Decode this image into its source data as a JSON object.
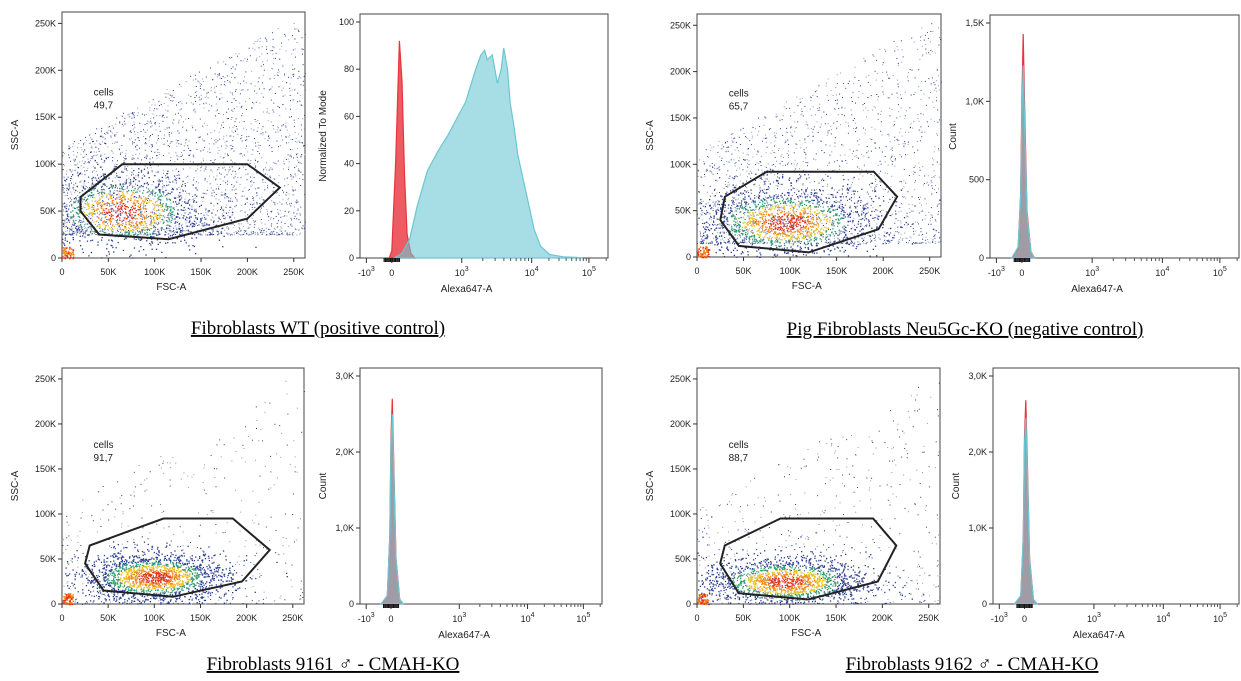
{
  "colors": {
    "control_histogram": "#e8323c",
    "stained_histogram": "#6cc6d2",
    "dot_low": "#2a3d8f",
    "dot_mid": "#2f9b6e",
    "dot_high": "#f0c020",
    "dot_peak": "#e03418",
    "gate": "#222222"
  },
  "chart_data": [
    {
      "id": "p1",
      "type": "scatter",
      "title": "",
      "caption": "Fibroblasts WT (positive control)",
      "xlabel": "FSC-A",
      "ylabel": "SSC-A",
      "xlim": [
        0,
        262144
      ],
      "ylim": [
        0,
        262144
      ],
      "x_ticks": [
        0,
        50000,
        100000,
        150000,
        200000,
        250000
      ],
      "x_tick_labels": [
        "0",
        "50K",
        "100K",
        "150K",
        "200K",
        "250K"
      ],
      "y_ticks": [
        0,
        50000,
        100000,
        150000,
        200000,
        250000
      ],
      "y_tick_labels": [
        "0",
        "50K",
        "100K",
        "150K",
        "200K",
        "250K"
      ],
      "gate": {
        "name": "cells",
        "value": "49,7",
        "vertices": [
          [
            20000,
            50000
          ],
          [
            40000,
            25000
          ],
          [
            115000,
            20000
          ],
          [
            200000,
            42000
          ],
          [
            235000,
            75000
          ],
          [
            200000,
            100000
          ],
          [
            65000,
            100000
          ],
          [
            20000,
            65000
          ]
        ]
      },
      "population": {
        "center": [
          65000,
          50000
        ],
        "spread": [
          45000,
          22000
        ],
        "n_core": 1100,
        "n_background": 2600,
        "bg_ymin": 25000,
        "bg_ymax": 262144,
        "bg_xmin": 0,
        "bg_xmax": 262144
      }
    },
    {
      "id": "h1",
      "type": "area",
      "title": "",
      "xlabel": "Alexa647-A",
      "ylabel": "Normalized To Mode",
      "ylim": [
        0,
        100
      ],
      "y_ticks": [
        0,
        20,
        40,
        60,
        80,
        100
      ],
      "y_tick_labels": [
        "0",
        "20",
        "40",
        "60",
        "80",
        "100"
      ],
      "x_tick_labels": [
        "-10",
        "0",
        "10",
        "10",
        "10"
      ],
      "x_tick_exponents": [
        "3",
        "",
        "3",
        "4",
        "5"
      ],
      "series": [
        {
          "color_key": "control_histogram",
          "points": [
            [
              -0.05,
              0
            ],
            [
              -0.02,
              0
            ],
            [
              0.0,
              3
            ],
            [
              0.03,
              40
            ],
            [
              0.06,
              92
            ],
            [
              0.08,
              75
            ],
            [
              0.1,
              35
            ],
            [
              0.12,
              10
            ],
            [
              0.15,
              2
            ],
            [
              0.18,
              0
            ]
          ]
        },
        {
          "color_key": "stained_histogram",
          "points": [
            [
              0.02,
              0
            ],
            [
              0.08,
              2
            ],
            [
              0.14,
              8
            ],
            [
              0.2,
              22
            ],
            [
              0.28,
              37
            ],
            [
              0.36,
              45
            ],
            [
              0.44,
              52
            ],
            [
              0.52,
              60
            ],
            [
              0.58,
              66
            ],
            [
              0.62,
              73
            ],
            [
              0.66,
              80
            ],
            [
              0.7,
              86
            ],
            [
              0.73,
              88
            ],
            [
              0.75,
              84
            ],
            [
              0.79,
              86
            ],
            [
              0.83,
              74
            ],
            [
              0.86,
              80
            ],
            [
              0.88,
              89
            ],
            [
              0.91,
              80
            ],
            [
              0.93,
              66
            ],
            [
              0.96,
              56
            ],
            [
              0.99,
              44
            ],
            [
              1.03,
              34
            ],
            [
              1.08,
              22
            ],
            [
              1.12,
              12
            ],
            [
              1.17,
              5
            ],
            [
              1.24,
              1.5
            ],
            [
              1.35,
              0.5
            ],
            [
              1.45,
              0.3
            ],
            [
              1.5,
              0
            ]
          ]
        }
      ]
    },
    {
      "id": "p2",
      "type": "scatter",
      "title": "",
      "caption": "Pig Fibroblasts Neu5Gc-KO (negative control)",
      "xlabel": "FSC-A",
      "ylabel": "SSC-A",
      "xlim": [
        0,
        262144
      ],
      "ylim": [
        0,
        262144
      ],
      "x_ticks": [
        0,
        50000,
        100000,
        150000,
        200000,
        250000
      ],
      "x_tick_labels": [
        "0",
        "50K",
        "100K",
        "150K",
        "200K",
        "250K"
      ],
      "y_ticks": [
        0,
        50000,
        100000,
        150000,
        200000,
        250000
      ],
      "y_tick_labels": [
        "0",
        "50K",
        "100K",
        "150K",
        "200K",
        "250K"
      ],
      "gate": {
        "name": "cells",
        "value": "65,7",
        "vertices": [
          [
            25000,
            40000
          ],
          [
            45000,
            12000
          ],
          [
            120000,
            5000
          ],
          [
            195000,
            30000
          ],
          [
            215000,
            65000
          ],
          [
            190000,
            92000
          ],
          [
            75000,
            92000
          ],
          [
            30000,
            65000
          ]
        ]
      },
      "population": {
        "center": [
          95000,
          38000
        ],
        "spread": [
          50000,
          20000
        ],
        "n_core": 1500,
        "n_background": 1800,
        "bg_ymin": 15000,
        "bg_ymax": 262144,
        "bg_xmin": 0,
        "bg_xmax": 262144
      }
    },
    {
      "id": "h2",
      "type": "area",
      "title": "",
      "xlabel": "Alexa647-A",
      "ylabel": "Count",
      "ylim": [
        0,
        1500
      ],
      "y_ticks": [
        0,
        500,
        1000,
        1500
      ],
      "y_tick_labels": [
        "0",
        "500",
        "1,0K",
        "1,5K"
      ],
      "x_tick_labels": [
        "-10",
        "0",
        "10",
        "10",
        "10"
      ],
      "x_tick_exponents": [
        "3",
        "",
        "3",
        "4",
        "5"
      ],
      "series": [
        {
          "color_key": "control_histogram",
          "points": [
            [
              -0.08,
              0
            ],
            [
              -0.03,
              60
            ],
            [
              -0.01,
              400
            ],
            [
              0.0,
              1000
            ],
            [
              0.01,
              1430
            ],
            [
              0.02,
              1000
            ],
            [
              0.04,
              300
            ],
            [
              0.07,
              40
            ],
            [
              0.1,
              0
            ]
          ]
        },
        {
          "color_key": "stained_histogram",
          "points": [
            [
              -0.08,
              0
            ],
            [
              -0.03,
              70
            ],
            [
              -0.01,
              380
            ],
            [
              0.0,
              900
            ],
            [
              0.01,
              1230
            ],
            [
              0.02,
              900
            ],
            [
              0.04,
              280
            ],
            [
              0.07,
              40
            ],
            [
              0.1,
              0
            ]
          ]
        }
      ]
    },
    {
      "id": "p3",
      "type": "scatter",
      "title": "",
      "caption": "Fibroblasts 9161 ♂ - CMAH-KO",
      "xlabel": "FSC-A",
      "ylabel": "SSC-A",
      "xlim": [
        0,
        262144
      ],
      "ylim": [
        0,
        262144
      ],
      "x_ticks": [
        0,
        50000,
        100000,
        150000,
        200000,
        250000
      ],
      "x_tick_labels": [
        "0",
        "50K",
        "100K",
        "150K",
        "200K",
        "250K"
      ],
      "y_ticks": [
        0,
        50000,
        100000,
        150000,
        200000,
        250000
      ],
      "y_tick_labels": [
        "0",
        "50K",
        "100K",
        "150K",
        "200K",
        "250K"
      ],
      "gate": {
        "name": "cells",
        "value": "91,7",
        "vertices": [
          [
            25000,
            45000
          ],
          [
            45000,
            15000
          ],
          [
            120000,
            8000
          ],
          [
            195000,
            25000
          ],
          [
            225000,
            60000
          ],
          [
            185000,
            95000
          ],
          [
            110000,
            95000
          ],
          [
            30000,
            65000
          ]
        ]
      },
      "population": {
        "center": [
          100000,
          30000
        ],
        "spread": [
          40000,
          14000
        ],
        "n_core": 1800,
        "n_background": 450,
        "bg_ymin": 0,
        "bg_ymax": 262144,
        "bg_xmin": 0,
        "bg_xmax": 262144
      }
    },
    {
      "id": "h3",
      "type": "area",
      "title": "",
      "xlabel": "Alexa647-A",
      "ylabel": "Count",
      "ylim": [
        0,
        3000
      ],
      "y_ticks": [
        0,
        1000,
        2000,
        3000
      ],
      "y_tick_labels": [
        "0",
        "1,0K",
        "2,0K",
        "3,0K"
      ],
      "x_tick_labels": [
        "-10",
        "0",
        "10",
        "10",
        "10"
      ],
      "x_tick_exponents": [
        "3",
        "",
        "3",
        "4",
        "5"
      ],
      "series": [
        {
          "color_key": "control_histogram",
          "points": [
            [
              -0.08,
              0
            ],
            [
              -0.03,
              100
            ],
            [
              -0.01,
              900
            ],
            [
              0.0,
              2200
            ],
            [
              0.01,
              2700
            ],
            [
              0.02,
              2000
            ],
            [
              0.04,
              600
            ],
            [
              0.07,
              60
            ],
            [
              0.1,
              0
            ]
          ]
        },
        {
          "color_key": "stained_histogram",
          "points": [
            [
              -0.08,
              0
            ],
            [
              -0.03,
              110
            ],
            [
              -0.01,
              880
            ],
            [
              0.0,
              2100
            ],
            [
              0.01,
              2500
            ],
            [
              0.02,
              1900
            ],
            [
              0.04,
              580
            ],
            [
              0.07,
              60
            ],
            [
              0.1,
              0
            ]
          ]
        }
      ]
    },
    {
      "id": "p4",
      "type": "scatter",
      "title": "",
      "caption": "Fibroblasts 9162 ♂ - CMAH-KO",
      "xlabel": "FSC-A",
      "ylabel": "SSC-A",
      "xlim": [
        0,
        262144
      ],
      "ylim": [
        0,
        262144
      ],
      "x_ticks": [
        0,
        50000,
        100000,
        150000,
        200000,
        250000
      ],
      "x_tick_labels": [
        "0",
        "50K",
        "100K",
        "150K",
        "200K",
        "250K"
      ],
      "y_ticks": [
        0,
        50000,
        100000,
        150000,
        200000,
        250000
      ],
      "y_tick_labels": [
        "0",
        "50K",
        "100K",
        "150K",
        "200K",
        "250K"
      ],
      "gate": {
        "name": "cells",
        "value": "88,7",
        "vertices": [
          [
            25000,
            45000
          ],
          [
            45000,
            12000
          ],
          [
            120000,
            5000
          ],
          [
            195000,
            25000
          ],
          [
            215000,
            65000
          ],
          [
            190000,
            95000
          ],
          [
            90000,
            95000
          ],
          [
            30000,
            65000
          ]
        ]
      },
      "population": {
        "center": [
          95000,
          25000
        ],
        "spread": [
          45000,
          14000
        ],
        "n_core": 1700,
        "n_background": 600,
        "bg_ymin": 0,
        "bg_ymax": 262144,
        "bg_xmin": 0,
        "bg_xmax": 262144
      }
    },
    {
      "id": "h4",
      "type": "area",
      "title": "",
      "xlabel": "Alexa647-A",
      "ylabel": "Count",
      "ylim": [
        0,
        3000
      ],
      "y_ticks": [
        0,
        1000,
        2000,
        3000
      ],
      "y_tick_labels": [
        "0",
        "1,0K",
        "2,0K",
        "3,0K"
      ],
      "x_tick_labels": [
        "-10",
        "0",
        "10",
        "10",
        "10"
      ],
      "x_tick_exponents": [
        "3",
        "",
        "3",
        "4",
        "5"
      ],
      "series": [
        {
          "color_key": "control_histogram",
          "points": [
            [
              -0.08,
              0
            ],
            [
              -0.03,
              100
            ],
            [
              -0.01,
              900
            ],
            [
              0.0,
              2200
            ],
            [
              0.01,
              2680
            ],
            [
              0.02,
              2000
            ],
            [
              0.04,
              600
            ],
            [
              0.07,
              60
            ],
            [
              0.1,
              0
            ]
          ]
        },
        {
          "color_key": "stained_histogram",
          "points": [
            [
              -0.08,
              0
            ],
            [
              -0.03,
              110
            ],
            [
              -0.01,
              880
            ],
            [
              0.0,
              2100
            ],
            [
              0.01,
              2450
            ],
            [
              0.02,
              1900
            ],
            [
              0.04,
              580
            ],
            [
              0.07,
              60
            ],
            [
              0.1,
              0
            ]
          ]
        }
      ]
    }
  ]
}
